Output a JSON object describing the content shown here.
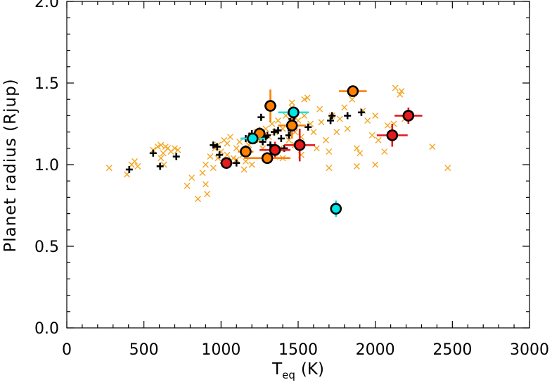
{
  "chart_data": {
    "type": "scatter",
    "xlabel": "T",
    "xlabel_sub": "eq",
    "xlabel_unit": "(K)",
    "ylabel": "Planet radius (Rjup)",
    "xlim": [
      0,
      3000
    ],
    "ylim": [
      0.0,
      2.0
    ],
    "x_ticks": [
      0,
      500,
      1000,
      1500,
      2000,
      2500,
      3000
    ],
    "x_tick_labels": [
      "0",
      "500",
      "1000",
      "1500",
      "2000",
      "2500",
      "3000"
    ],
    "y_ticks": [
      0.0,
      0.5,
      1.0,
      1.5,
      2.0
    ],
    "y_tick_labels": [
      "0.0",
      "0.5",
      "1.0",
      "1.5",
      "2.0"
    ],
    "grid": false,
    "colors": {
      "orange_x": "#f5a623",
      "black_plus": "#000000",
      "red": "#e41a1c",
      "orange": "#ff7f00",
      "cyan": "#00e5e5"
    },
    "series": [
      {
        "marker": "x",
        "color": "#f5a623",
        "points": [
          [
            275,
            0.98
          ],
          [
            390,
            0.94
          ],
          [
            420,
            1.0
          ],
          [
            440,
            1.02
          ],
          [
            460,
            0.99
          ],
          [
            560,
            1.09
          ],
          [
            590,
            1.11
          ],
          [
            610,
            1.12
          ],
          [
            625,
            1.07
          ],
          [
            640,
            1.11
          ],
          [
            655,
            1.1
          ],
          [
            675,
            1.08
          ],
          [
            700,
            1.1
          ],
          [
            720,
            1.09
          ],
          [
            610,
            1.04
          ],
          [
            630,
            1.0
          ],
          [
            780,
            0.87
          ],
          [
            810,
            0.92
          ],
          [
            850,
            0.79
          ],
          [
            880,
            0.95
          ],
          [
            900,
            0.88
          ],
          [
            910,
            0.82
          ],
          [
            930,
            1.05
          ],
          [
            960,
            1.1
          ],
          [
            980,
            1.12
          ],
          [
            1000,
            1.08
          ],
          [
            1020,
            1.15
          ],
          [
            1040,
            1.13
          ],
          [
            1060,
            1.17
          ],
          [
            1080,
            1.04
          ],
          [
            1100,
            1.1
          ],
          [
            1120,
            1.14
          ],
          [
            1140,
            1.06
          ],
          [
            1160,
            1.02
          ],
          [
            1180,
            1.12
          ],
          [
            1200,
            1.18
          ],
          [
            1230,
            1.2
          ],
          [
            1250,
            1.15
          ],
          [
            1270,
            1.1
          ],
          [
            1290,
            1.22
          ],
          [
            1310,
            1.17
          ],
          [
            1330,
            1.25
          ],
          [
            1350,
            1.2
          ],
          [
            1370,
            1.27
          ],
          [
            1380,
            1.1
          ],
          [
            1400,
            1.22
          ],
          [
            1420,
            1.3
          ],
          [
            1440,
            1.15
          ],
          [
            1460,
            1.35
          ],
          [
            1480,
            1.2
          ],
          [
            1500,
            1.27
          ],
          [
            1520,
            1.17
          ],
          [
            1540,
            1.3
          ],
          [
            1560,
            1.41
          ],
          [
            1580,
            1.25
          ],
          [
            1600,
            1.2
          ],
          [
            1620,
            1.1
          ],
          [
            1640,
            1.34
          ],
          [
            1650,
            1.26
          ],
          [
            1680,
            1.15
          ],
          [
            1700,
            1.08
          ],
          [
            1720,
            1.3
          ],
          [
            1750,
            1.2
          ],
          [
            1770,
            1.28
          ],
          [
            1800,
            1.35
          ],
          [
            1820,
            1.22
          ],
          [
            1850,
            1.4
          ],
          [
            1880,
            1.1
          ],
          [
            1900,
            1.07
          ],
          [
            1920,
            1.33
          ],
          [
            1950,
            1.27
          ],
          [
            1980,
            1.18
          ],
          [
            2000,
            1.3
          ],
          [
            2020,
            1.15
          ],
          [
            2060,
            1.08
          ],
          [
            2080,
            1.24
          ],
          [
            2120,
            1.25
          ],
          [
            2130,
            1.47
          ],
          [
            2160,
            1.43
          ],
          [
            2170,
            1.45
          ],
          [
            2190,
            1.28
          ],
          [
            2370,
            1.11
          ],
          [
            2470,
            0.98
          ],
          [
            1540,
            1.4
          ],
          [
            1460,
            1.38
          ],
          [
            1700,
            0.98
          ],
          [
            1880,
            0.99
          ],
          [
            2000,
            1.0
          ],
          [
            1350,
            1.05
          ],
          [
            1400,
            1.04
          ],
          [
            1480,
            1.12
          ],
          [
            1520,
            1.06
          ],
          [
            1300,
            1.03
          ],
          [
            1200,
            1.0
          ],
          [
            1100,
            1.03
          ],
          [
            1040,
            1.06
          ],
          [
            980,
            1.04
          ],
          [
            900,
            1.0
          ],
          [
            950,
            0.98
          ],
          [
            1150,
            0.97
          ]
        ]
      },
      {
        "marker": "plus",
        "color": "#000000",
        "points": [
          [
            405,
            0.97
          ],
          [
            560,
            1.07
          ],
          [
            605,
            0.99
          ],
          [
            710,
            1.05
          ],
          [
            950,
            1.12
          ],
          [
            975,
            1.11
          ],
          [
            990,
            1.06
          ],
          [
            1100,
            1.01
          ],
          [
            1160,
            1.16
          ],
          [
            1200,
            1.19
          ],
          [
            1240,
            1.2
          ],
          [
            1260,
            1.29
          ],
          [
            1270,
            1.14
          ],
          [
            1290,
            1.17
          ],
          [
            1300,
            1.18
          ],
          [
            1320,
            1.12
          ],
          [
            1345,
            1.2
          ],
          [
            1370,
            1.21
          ],
          [
            1390,
            1.16
          ],
          [
            1410,
            1.1
          ],
          [
            1440,
            1.18
          ],
          [
            1455,
            1.21
          ],
          [
            1565,
            1.23
          ],
          [
            1710,
            1.27
          ],
          [
            1720,
            1.3
          ],
          [
            1820,
            1.3
          ],
          [
            1910,
            1.32
          ],
          [
            1460,
            1.28
          ]
        ]
      },
      {
        "marker": "circle",
        "color": "#e41a1c",
        "points": [
          [
            1035,
            1.01
          ],
          [
            1350,
            1.09
          ],
          [
            1510,
            1.12
          ],
          [
            2110,
            1.18
          ],
          [
            2215,
            1.3
          ]
        ],
        "xerr": [
          40,
          100,
          100,
          100,
          90
        ],
        "yerr": [
          0.03,
          0.05,
          0.1,
          0.07,
          0.05
        ]
      },
      {
        "marker": "circle",
        "color": "#ff7f00",
        "points": [
          [
            1160,
            1.08
          ],
          [
            1250,
            1.19
          ],
          [
            1300,
            1.04
          ],
          [
            1320,
            1.36
          ],
          [
            1460,
            1.24
          ],
          [
            1855,
            1.45
          ]
        ],
        "xerr": [
          50,
          50,
          150,
          40,
          90,
          90
        ],
        "yerr": [
          0.04,
          0.04,
          0.03,
          0.1,
          0.08,
          0.03
        ]
      },
      {
        "marker": "circle",
        "color": "#00e5e5",
        "points": [
          [
            1205,
            1.16
          ],
          [
            1470,
            1.32
          ],
          [
            1745,
            0.73
          ]
        ],
        "xerr": [
          80,
          100,
          20
        ],
        "yerr": [
          0.03,
          0.03,
          0.05
        ]
      }
    ]
  }
}
